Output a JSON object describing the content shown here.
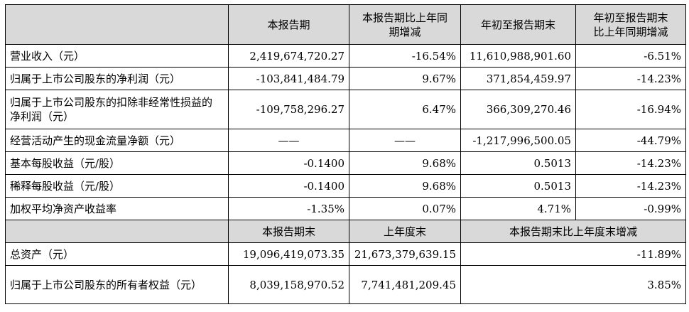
{
  "header1": {
    "corner": "",
    "c1": "本报告期",
    "c2": "本报告期比上年同期增减",
    "c3": "年初至报告期末",
    "c4": "年初至报告期末比上年同期增减"
  },
  "rows1": [
    {
      "label": "营业收入（元）",
      "v1": "2,419,674,720.27",
      "v2": "-16.54%",
      "v3": "11,610,988,901.60",
      "v4": "-6.51%"
    },
    {
      "label": "归属于上市公司股东的净利润（元）",
      "v1": "-103,841,484.79",
      "v2": "9.67%",
      "v3": "371,854,459.97",
      "v4": "-14.23%"
    },
    {
      "label": "归属于上市公司股东的扣除非经常性损益的净利润（元）",
      "v1": "-109,758,296.27",
      "v2": "6.47%",
      "v3": "366,309,270.46",
      "v4": "-16.94%"
    },
    {
      "label": "经营活动产生的现金流量净额（元）",
      "v1": "——",
      "v2": "——",
      "v3": "-1,217,996,500.05",
      "v4": "-44.79%"
    },
    {
      "label": "基本每股收益（元/股）",
      "v1": "-0.1400",
      "v2": "9.68%",
      "v3": "0.5013",
      "v4": "-14.23%"
    },
    {
      "label": "稀释每股收益（元/股）",
      "v1": "-0.1400",
      "v2": "9.68%",
      "v3": "0.5013",
      "v4": "-14.23%"
    },
    {
      "label": "加权平均净资产收益率",
      "v1": "-1.35%",
      "v2": "0.07%",
      "v3": "4.71%",
      "v4": "-0.99%"
    }
  ],
  "header2": {
    "c1": "本报告期末",
    "c2": "上年度末",
    "c3": "本报告期末比上年度末增减"
  },
  "rows2": [
    {
      "label": "总资产（元）",
      "v1": "19,096,419,073.35",
      "v2": "21,673,379,639.15",
      "v3": "-11.89%"
    },
    {
      "label": "归属于上市公司股东的所有者权益（元）",
      "v1": "8,039,158,970.52",
      "v2": "7,741,481,209.45",
      "v3": "3.85%"
    }
  ]
}
